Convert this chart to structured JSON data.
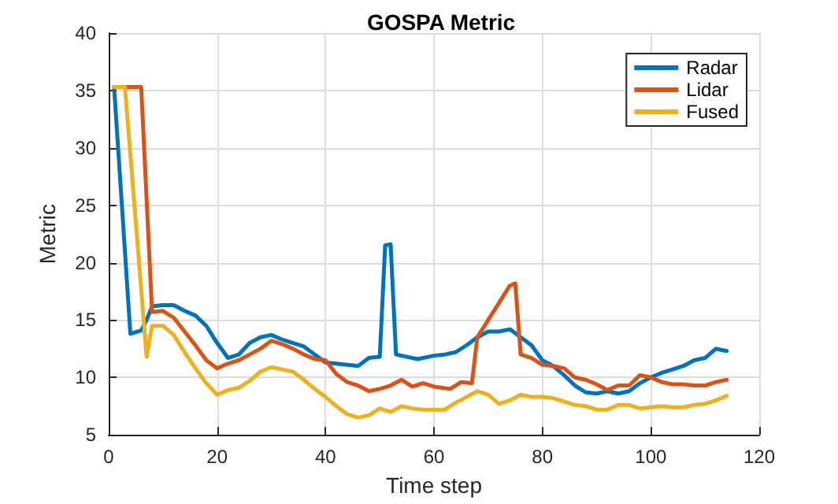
{
  "chart_data": {
    "type": "line",
    "title": "GOSPA Metric",
    "xlabel": "Time step",
    "ylabel": "Metric",
    "xlim": [
      0,
      120
    ],
    "xticks": [
      0,
      20,
      40,
      60,
      80,
      100,
      120
    ],
    "ylim": [
      5,
      40
    ],
    "yticks": [
      5,
      10,
      15,
      20,
      25,
      30,
      35,
      40
    ],
    "grid": true,
    "legend": "top right",
    "marker": "none",
    "line_style": "solid",
    "series": [
      {
        "name": "Radar",
        "color": "#0072bd",
        "x": [
          1,
          4,
          6,
          7,
          8,
          10,
          12,
          14,
          16,
          18,
          20,
          22,
          24,
          26,
          28,
          30,
          32,
          34,
          36,
          38,
          40,
          42,
          44,
          46,
          48,
          50,
          51,
          52,
          53,
          55,
          57,
          60,
          62,
          64,
          66,
          68,
          70,
          72,
          74,
          76,
          78,
          80,
          82,
          84,
          86,
          88,
          90,
          92,
          94,
          96,
          98,
          100,
          102,
          104,
          106,
          108,
          110,
          112,
          114
        ],
        "values": [
          35.3,
          13.8,
          14.1,
          15,
          16.2,
          16.3,
          16.3,
          15.8,
          15.4,
          14.5,
          13,
          11.7,
          12,
          13,
          13.5,
          13.7,
          13.3,
          13,
          12.7,
          12,
          11.3,
          11.2,
          11.1,
          11,
          11.7,
          11.8,
          21.5,
          21.6,
          12,
          11.8,
          11.6,
          11.9,
          12,
          12.2,
          12.8,
          13.5,
          14,
          14,
          14.2,
          13.5,
          12.8,
          11.5,
          11,
          10.2,
          9.3,
          8.7,
          8.6,
          8.8,
          8.6,
          8.8,
          9.5,
          10,
          10.4,
          10.7,
          11,
          11.5,
          11.7,
          12.5,
          12.3
        ]
      },
      {
        "name": "Lidar",
        "color": "#d95319",
        "x": [
          1,
          6,
          8,
          10,
          12,
          14,
          16,
          18,
          20,
          22,
          24,
          26,
          28,
          30,
          32,
          34,
          36,
          38,
          40,
          42,
          44,
          46,
          48,
          50,
          52,
          54,
          56,
          58,
          60,
          63,
          65,
          67,
          68,
          70,
          72,
          74,
          75,
          76,
          78,
          80,
          82,
          84,
          86,
          88,
          90,
          92,
          94,
          96,
          98,
          100,
          102,
          104,
          106,
          108,
          110,
          112,
          114
        ],
        "values": [
          35.3,
          35.3,
          15.7,
          15.8,
          15.2,
          14,
          12.8,
          11.5,
          10.8,
          11.2,
          11.5,
          12,
          12.5,
          13.2,
          12.9,
          12.5,
          12,
          11.6,
          11.5,
          10.3,
          9.6,
          9.3,
          8.8,
          9,
          9.3,
          9.8,
          9.2,
          9.5,
          9.2,
          9,
          9.6,
          9.5,
          13.5,
          15,
          16.5,
          18,
          18.2,
          12,
          11.7,
          11.1,
          11,
          10.8,
          10,
          9.8,
          9.4,
          8.9,
          9.3,
          9.3,
          10.2,
          10,
          9.6,
          9.4,
          9.4,
          9.3,
          9.3,
          9.6,
          9.8
        ]
      },
      {
        "name": "Fused",
        "color": "#edb120",
        "x": [
          1,
          3,
          7,
          8,
          10,
          12,
          14,
          16,
          18,
          20,
          22,
          24,
          26,
          28,
          30,
          32,
          34,
          36,
          38,
          40,
          42,
          44,
          46,
          48,
          50,
          52,
          54,
          56,
          58,
          60,
          62,
          64,
          66,
          68,
          70,
          72,
          74,
          76,
          78,
          80,
          82,
          84,
          86,
          88,
          90,
          92,
          94,
          96,
          98,
          100,
          102,
          104,
          106,
          108,
          110,
          112,
          114
        ],
        "values": [
          35.3,
          35.3,
          11.8,
          14.5,
          14.5,
          13.7,
          12.2,
          10.8,
          9.5,
          8.5,
          8.9,
          9.1,
          9.7,
          10.5,
          10.9,
          10.7,
          10.5,
          9.8,
          9,
          8.3,
          7.5,
          6.8,
          6.5,
          6.7,
          7.3,
          7,
          7.5,
          7.3,
          7.2,
          7.2,
          7.2,
          7.8,
          8.3,
          8.8,
          8.5,
          7.7,
          8,
          8.5,
          8.3,
          8.3,
          8.2,
          7.9,
          7.6,
          7.5,
          7.2,
          7.2,
          7.6,
          7.6,
          7.3,
          7.4,
          7.5,
          7.4,
          7.4,
          7.6,
          7.7,
          8,
          8.4
        ]
      }
    ]
  }
}
